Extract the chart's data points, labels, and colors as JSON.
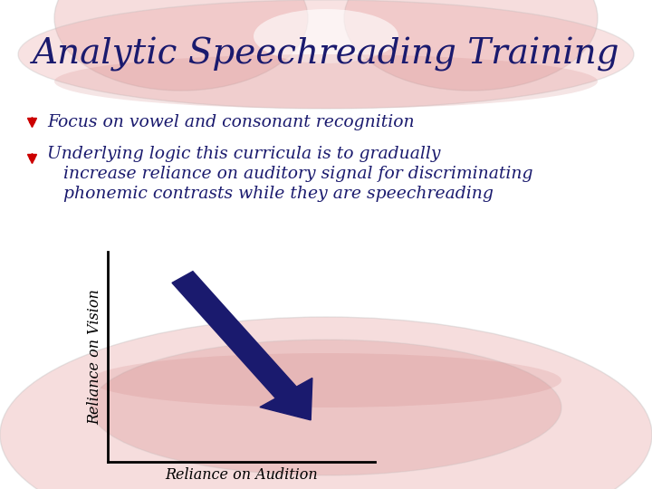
{
  "title": "Analytic Speechreading Training",
  "title_color": "#1a1a6e",
  "title_fontsize": 28,
  "background_color": "#ffffff",
  "bullet_color": "#cc0000",
  "text_color": "#1a1a6e",
  "bullet_symbol": "❤",
  "bullet1": "Focus on vowel and consonant recognition",
  "bullet2_line1": "Underlying logic this curricula is to gradually",
  "bullet2_line2": "increase reliance on auditory signal for discriminating",
  "bullet2_line3": "phonemic contrasts while they are speechreading",
  "xlabel": "Reliance on Audition",
  "ylabel": "Reliance on Vision",
  "arrow_color": "#1a1a6e",
  "lip_outline_color": "#bbbbbb",
  "lip_fill_color": "#e8a0a0",
  "lip_fill_color2": "#d08080"
}
